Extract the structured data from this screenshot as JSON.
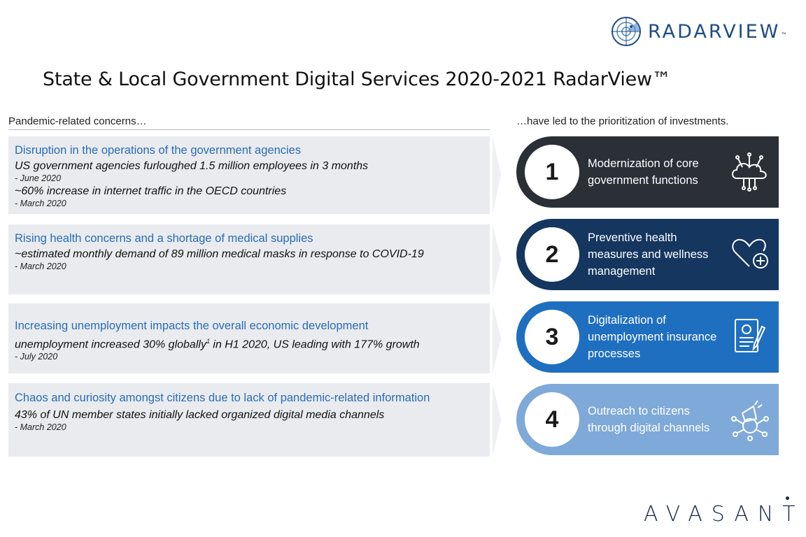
{
  "header": {
    "logo_text": "RADARVIEW",
    "logo_tm": "™",
    "title": "State & Local Government Digital Services 2020-2021 RadarView™"
  },
  "left_heading": "Pandemic-related concerns…",
  "right_heading": "…have led to the prioritization of investments.",
  "concerns": [
    {
      "title": "Disruption in the operations of the government agencies",
      "stat1": "US government agencies furloughed 1.5 million employees in 3 months",
      "date1": "-   June 2020",
      "stat2": "~60% increase in internet traffic in the OECD countries",
      "date2": "- March 2020"
    },
    {
      "title": "Rising health concerns and a shortage of medical supplies",
      "stat1": "~estimated monthly demand of 89 million medical masks in response to COVID-19",
      "date1": "- March 2020"
    },
    {
      "title": "Increasing unemployment impacts the overall economic development",
      "stat1_a": "unemployment increased 30% globally",
      "stat1_sup": "1",
      "stat1_b": " in H1 2020, US leading with 177% growth",
      "date1": "- July 2020"
    },
    {
      "title": "Chaos and curiosity amongst citizens due to lack of pandemic-related information",
      "stat1": "43% of UN member states initially lacked organized digital media channels",
      "date1": "- March 2020"
    }
  ],
  "investments": [
    {
      "number": "1",
      "text": "Modernization of core government functions",
      "icon": "cloud-circuit-icon",
      "color": "#2b2f36"
    },
    {
      "number": "2",
      "text": "Preventive health measures and wellness management",
      "icon": "heart-plus-icon",
      "color": "#14365f"
    },
    {
      "number": "3",
      "text": "Digitalization of unemployment insurance processes",
      "icon": "document-pen-icon",
      "color": "#1f6fc0"
    },
    {
      "number": "4",
      "text": "Outreach to citizens through digital channels",
      "icon": "megaphone-network-icon",
      "color": "#7fa9d9"
    }
  ],
  "footer": {
    "brand": "AVASANT"
  }
}
